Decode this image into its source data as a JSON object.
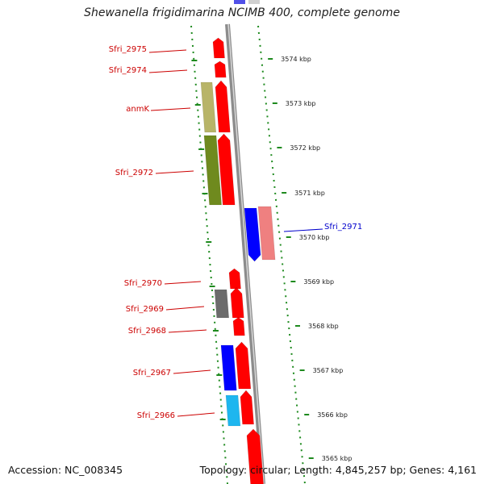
{
  "title": "Shewanella frigidimarina NCIMB 400, complete genome",
  "footer": {
    "accession": "Accession: NC_008345",
    "topology": "Topology: circular; Length: 4,845,257 bp; Genes: 4,161"
  },
  "colors": {
    "forward_cds": "#ff0000",
    "reverse_cds": "#0000ff",
    "label_red": "#cc0000",
    "label_blue": "#0000cc",
    "olive_light": "#b8b468",
    "olive_dark": "#6f8a1e",
    "gray_feature": "#6c6c6c",
    "cyan_feature": "#1eb6ef",
    "pink_feature": "#ef8080",
    "backbone": "#8c8c8c",
    "dotted_ring": "#1e8a1e"
  },
  "scale_labels": [
    "3574 kbp",
    "3573 kbp",
    "3572 kbp",
    "3571 kbp",
    "3570 kbp",
    "3569 kbp",
    "3568 kbp",
    "3567 kbp",
    "3566 kbp",
    "3565 kbp"
  ],
  "gene_labels": [
    {
      "text": "Sfri_2975",
      "color": "red"
    },
    {
      "text": "Sfri_2974",
      "color": "red"
    },
    {
      "text": "anmK",
      "color": "red"
    },
    {
      "text": "Sfri_2972",
      "color": "red"
    },
    {
      "text": "Sfri_2971",
      "color": "blue"
    },
    {
      "text": "Sfri_2970",
      "color": "red"
    },
    {
      "text": "Sfri_2969",
      "color": "red"
    },
    {
      "text": "Sfri_2968",
      "color": "red"
    },
    {
      "text": "Sfri_2967",
      "color": "red"
    },
    {
      "text": "Sfri_2966",
      "color": "red"
    }
  ]
}
